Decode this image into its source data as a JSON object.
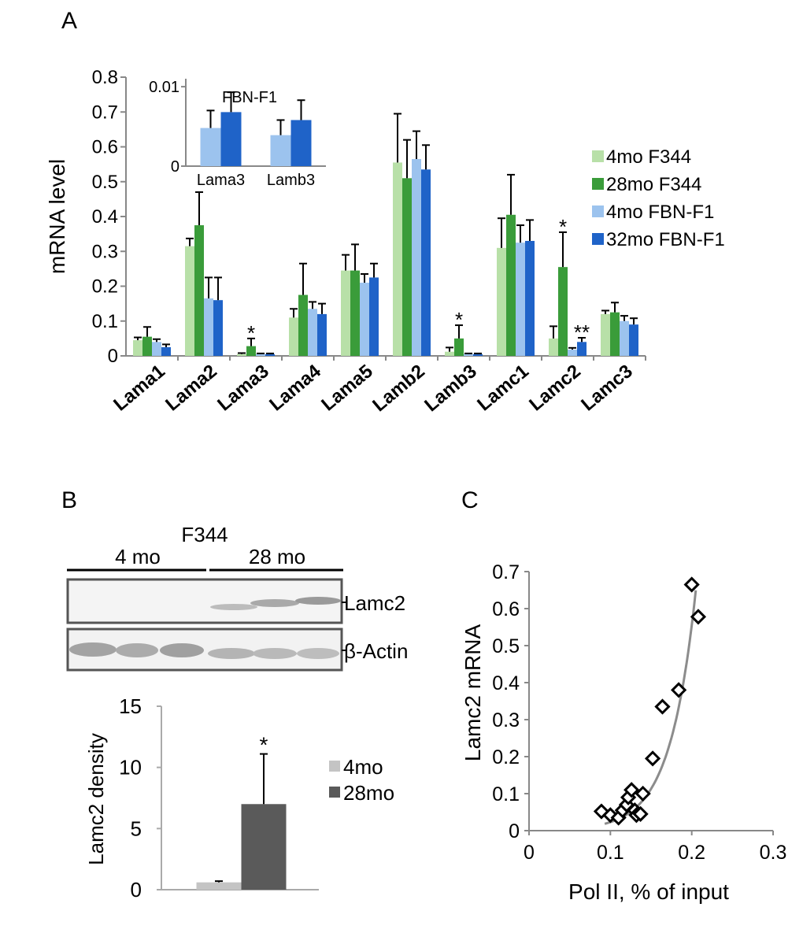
{
  "panels": {
    "a": "A",
    "b": "B",
    "c": "C"
  },
  "colors": {
    "light_green": "#b8e0a8",
    "dark_green": "#3a9c3a",
    "light_blue": "#9cc3ee",
    "dark_blue": "#1f63c8",
    "gray_light": "#c4c4c4",
    "gray_dark": "#5a5a5a",
    "fit_line": "#8c8c8c"
  },
  "chart_data": [
    {
      "id": "A",
      "type": "bar",
      "ylabel": "mRNA level",
      "ylim": [
        0,
        0.8
      ],
      "yticks": [
        0,
        0.1,
        0.2,
        0.3,
        0.4,
        0.5,
        0.6,
        0.7,
        0.8
      ],
      "yticklabels": [
        "0",
        "0.1",
        "0.2",
        "0.3",
        "0.4",
        "0.5",
        "0.6",
        "0.7",
        "0.8"
      ],
      "categories": [
        "Lama1",
        "Lama2",
        "Lama3",
        "Lama4",
        "Lama5",
        "Lamb2",
        "Lamb3",
        "Lamc1",
        "Lamc2",
        "Lamc3"
      ],
      "series": [
        {
          "name": "4mo F344",
          "color": "#b8e0a8",
          "values": [
            0.045,
            0.315,
            0.005,
            0.11,
            0.245,
            0.555,
            0.012,
            0.31,
            0.05,
            0.12
          ],
          "errors": [
            0.008,
            0.022,
            0.003,
            0.025,
            0.045,
            0.14,
            0.012,
            0.085,
            0.035,
            0.01
          ]
        },
        {
          "name": "28mo F344",
          "color": "#3a9c3a",
          "values": [
            0.055,
            0.375,
            0.028,
            0.175,
            0.245,
            0.51,
            0.05,
            0.405,
            0.255,
            0.125
          ],
          "errors": [
            0.028,
            0.095,
            0.022,
            0.09,
            0.075,
            0.11,
            0.038,
            0.115,
            0.1,
            0.028
          ]
        },
        {
          "name": "4mo FBN-F1",
          "color": "#9cc3ee",
          "values": [
            0.04,
            0.165,
            0.005,
            0.135,
            0.21,
            0.565,
            0.005,
            0.325,
            0.018,
            0.1
          ],
          "errors": [
            0.008,
            0.06,
            0.002,
            0.02,
            0.025,
            0.08,
            0.002,
            0.05,
            0.005,
            0.015
          ]
        },
        {
          "name": "32mo FBN-F1",
          "color": "#1f63c8",
          "values": [
            0.025,
            0.16,
            0.005,
            0.12,
            0.225,
            0.535,
            0.005,
            0.33,
            0.04,
            0.09
          ],
          "errors": [
            0.008,
            0.065,
            0.002,
            0.03,
            0.04,
            0.07,
            0.002,
            0.06,
            0.012,
            0.018
          ]
        }
      ],
      "annotations": [
        {
          "category": "Lama3",
          "series": 1,
          "text": "*"
        },
        {
          "category": "Lamb3",
          "series": 1,
          "text": "*"
        },
        {
          "category": "Lamc2",
          "series": 1,
          "text": "*"
        },
        {
          "category": "Lamc2",
          "series": 3,
          "text": "**"
        }
      ],
      "legend": [
        "4mo F344",
        "28mo F344",
        "4mo FBN-F1",
        "32mo FBN-F1"
      ],
      "legend_position": "right",
      "inset": {
        "title": "FBN-F1",
        "type": "bar",
        "ylim": [
          0,
          0.011
        ],
        "yticks": [
          0,
          0.01
        ],
        "yticklabels": [
          "0",
          "0.01"
        ],
        "categories": [
          "Lama3",
          "Lamb3"
        ],
        "series": [
          {
            "name": "4mo FBN-F1",
            "color": "#9cc3ee",
            "values": [
              0.0048,
              0.0039
            ],
            "errors": [
              0.0022,
              0.0019
            ]
          },
          {
            "name": "32mo FBN-F1",
            "color": "#1f63c8",
            "values": [
              0.0068,
              0.0058
            ],
            "errors": [
              0.0025,
              0.0025
            ]
          }
        ]
      }
    },
    {
      "id": "B",
      "type": "blot",
      "strain": "F344",
      "groups": [
        "4 mo",
        "28 mo"
      ],
      "bands": [
        "Lamc2",
        "β-Actin"
      ]
    },
    {
      "id": "B-quant",
      "type": "bar",
      "ylabel": "Lamc2 density",
      "ylim": [
        0,
        15
      ],
      "yticks": [
        0,
        5,
        10,
        15
      ],
      "yticklabels": [
        "0",
        "5",
        "10",
        "15"
      ],
      "categories": [
        "4mo",
        "28mo"
      ],
      "values": [
        0.6,
        7.0
      ],
      "errors": [
        0.1,
        4.1
      ],
      "colors": [
        "#c4c4c4",
        "#5a5a5a"
      ],
      "annotations": [
        {
          "category": "28mo",
          "text": "*"
        }
      ],
      "legend": [
        "4mo",
        "28mo"
      ],
      "legend_position": "right"
    },
    {
      "id": "C",
      "type": "scatter",
      "xlabel": "Pol II, % of input",
      "ylabel": "Lamc2 mRNA",
      "xlim": [
        0,
        0.3
      ],
      "ylim": [
        0,
        0.7
      ],
      "xticks": [
        0,
        0.1,
        0.2,
        0.3
      ],
      "xticklabels": [
        "0",
        "0.1",
        "0.2",
        "0.3"
      ],
      "yticks": [
        0,
        0.1,
        0.2,
        0.3,
        0.4,
        0.5,
        0.6,
        0.7
      ],
      "yticklabels": [
        "0",
        "0.1",
        "0.2",
        "0.3",
        "0.4",
        "0.5",
        "0.6",
        "0.7"
      ],
      "points": [
        {
          "x": 0.089,
          "y": 0.052
        },
        {
          "x": 0.1,
          "y": 0.042
        },
        {
          "x": 0.11,
          "y": 0.035
        },
        {
          "x": 0.115,
          "y": 0.055
        },
        {
          "x": 0.12,
          "y": 0.07
        },
        {
          "x": 0.122,
          "y": 0.09
        },
        {
          "x": 0.126,
          "y": 0.11
        },
        {
          "x": 0.13,
          "y": 0.055
        },
        {
          "x": 0.132,
          "y": 0.042
        },
        {
          "x": 0.137,
          "y": 0.045
        },
        {
          "x": 0.14,
          "y": 0.1
        },
        {
          "x": 0.152,
          "y": 0.195
        },
        {
          "x": 0.164,
          "y": 0.335
        },
        {
          "x": 0.184,
          "y": 0.38
        },
        {
          "x": 0.2,
          "y": 0.665
        },
        {
          "x": 0.208,
          "y": 0.578
        }
      ],
      "trendline": {
        "type": "exponential",
        "x_range": [
          0.093,
          0.205
        ],
        "a": 0.000958,
        "b": 31.8
      }
    }
  ]
}
